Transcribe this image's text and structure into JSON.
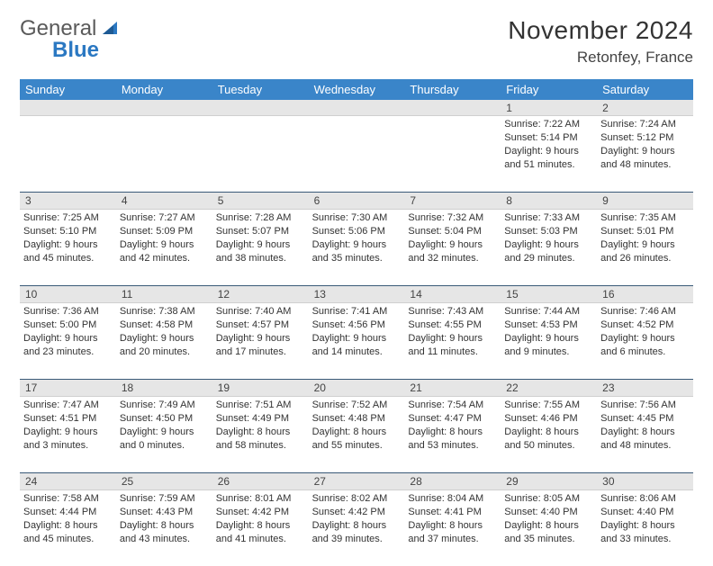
{
  "logo": {
    "text1": "General",
    "text2": "Blue"
  },
  "title": "November 2024",
  "subtitle": "Retonfey, France",
  "colors": {
    "header_bg": "#3a85c9",
    "header_text": "#ffffff",
    "daynum_bg": "#e6e6e6",
    "border": "#3a5a78",
    "body_text": "#333333",
    "logo_gray": "#5a5a5a",
    "logo_blue": "#2b78c2"
  },
  "fonts": {
    "title_size": 28,
    "subtitle_size": 17,
    "header_size": 13,
    "daynum_size": 12,
    "cell_size": 11
  },
  "weekdays": [
    "Sunday",
    "Monday",
    "Tuesday",
    "Wednesday",
    "Thursday",
    "Friday",
    "Saturday"
  ],
  "weeks": [
    {
      "nums": [
        "",
        "",
        "",
        "",
        "",
        "1",
        "2"
      ],
      "cells": [
        {
          "sunrise": "",
          "sunset": "",
          "daylight": ""
        },
        {
          "sunrise": "",
          "sunset": "",
          "daylight": ""
        },
        {
          "sunrise": "",
          "sunset": "",
          "daylight": ""
        },
        {
          "sunrise": "",
          "sunset": "",
          "daylight": ""
        },
        {
          "sunrise": "",
          "sunset": "",
          "daylight": ""
        },
        {
          "sunrise": "Sunrise: 7:22 AM",
          "sunset": "Sunset: 5:14 PM",
          "daylight": "Daylight: 9 hours and 51 minutes."
        },
        {
          "sunrise": "Sunrise: 7:24 AM",
          "sunset": "Sunset: 5:12 PM",
          "daylight": "Daylight: 9 hours and 48 minutes."
        }
      ]
    },
    {
      "nums": [
        "3",
        "4",
        "5",
        "6",
        "7",
        "8",
        "9"
      ],
      "cells": [
        {
          "sunrise": "Sunrise: 7:25 AM",
          "sunset": "Sunset: 5:10 PM",
          "daylight": "Daylight: 9 hours and 45 minutes."
        },
        {
          "sunrise": "Sunrise: 7:27 AM",
          "sunset": "Sunset: 5:09 PM",
          "daylight": "Daylight: 9 hours and 42 minutes."
        },
        {
          "sunrise": "Sunrise: 7:28 AM",
          "sunset": "Sunset: 5:07 PM",
          "daylight": "Daylight: 9 hours and 38 minutes."
        },
        {
          "sunrise": "Sunrise: 7:30 AM",
          "sunset": "Sunset: 5:06 PM",
          "daylight": "Daylight: 9 hours and 35 minutes."
        },
        {
          "sunrise": "Sunrise: 7:32 AM",
          "sunset": "Sunset: 5:04 PM",
          "daylight": "Daylight: 9 hours and 32 minutes."
        },
        {
          "sunrise": "Sunrise: 7:33 AM",
          "sunset": "Sunset: 5:03 PM",
          "daylight": "Daylight: 9 hours and 29 minutes."
        },
        {
          "sunrise": "Sunrise: 7:35 AM",
          "sunset": "Sunset: 5:01 PM",
          "daylight": "Daylight: 9 hours and 26 minutes."
        }
      ]
    },
    {
      "nums": [
        "10",
        "11",
        "12",
        "13",
        "14",
        "15",
        "16"
      ],
      "cells": [
        {
          "sunrise": "Sunrise: 7:36 AM",
          "sunset": "Sunset: 5:00 PM",
          "daylight": "Daylight: 9 hours and 23 minutes."
        },
        {
          "sunrise": "Sunrise: 7:38 AM",
          "sunset": "Sunset: 4:58 PM",
          "daylight": "Daylight: 9 hours and 20 minutes."
        },
        {
          "sunrise": "Sunrise: 7:40 AM",
          "sunset": "Sunset: 4:57 PM",
          "daylight": "Daylight: 9 hours and 17 minutes."
        },
        {
          "sunrise": "Sunrise: 7:41 AM",
          "sunset": "Sunset: 4:56 PM",
          "daylight": "Daylight: 9 hours and 14 minutes."
        },
        {
          "sunrise": "Sunrise: 7:43 AM",
          "sunset": "Sunset: 4:55 PM",
          "daylight": "Daylight: 9 hours and 11 minutes."
        },
        {
          "sunrise": "Sunrise: 7:44 AM",
          "sunset": "Sunset: 4:53 PM",
          "daylight": "Daylight: 9 hours and 9 minutes."
        },
        {
          "sunrise": "Sunrise: 7:46 AM",
          "sunset": "Sunset: 4:52 PM",
          "daylight": "Daylight: 9 hours and 6 minutes."
        }
      ]
    },
    {
      "nums": [
        "17",
        "18",
        "19",
        "20",
        "21",
        "22",
        "23"
      ],
      "cells": [
        {
          "sunrise": "Sunrise: 7:47 AM",
          "sunset": "Sunset: 4:51 PM",
          "daylight": "Daylight: 9 hours and 3 minutes."
        },
        {
          "sunrise": "Sunrise: 7:49 AM",
          "sunset": "Sunset: 4:50 PM",
          "daylight": "Daylight: 9 hours and 0 minutes."
        },
        {
          "sunrise": "Sunrise: 7:51 AM",
          "sunset": "Sunset: 4:49 PM",
          "daylight": "Daylight: 8 hours and 58 minutes."
        },
        {
          "sunrise": "Sunrise: 7:52 AM",
          "sunset": "Sunset: 4:48 PM",
          "daylight": "Daylight: 8 hours and 55 minutes."
        },
        {
          "sunrise": "Sunrise: 7:54 AM",
          "sunset": "Sunset: 4:47 PM",
          "daylight": "Daylight: 8 hours and 53 minutes."
        },
        {
          "sunrise": "Sunrise: 7:55 AM",
          "sunset": "Sunset: 4:46 PM",
          "daylight": "Daylight: 8 hours and 50 minutes."
        },
        {
          "sunrise": "Sunrise: 7:56 AM",
          "sunset": "Sunset: 4:45 PM",
          "daylight": "Daylight: 8 hours and 48 minutes."
        }
      ]
    },
    {
      "nums": [
        "24",
        "25",
        "26",
        "27",
        "28",
        "29",
        "30"
      ],
      "cells": [
        {
          "sunrise": "Sunrise: 7:58 AM",
          "sunset": "Sunset: 4:44 PM",
          "daylight": "Daylight: 8 hours and 45 minutes."
        },
        {
          "sunrise": "Sunrise: 7:59 AM",
          "sunset": "Sunset: 4:43 PM",
          "daylight": "Daylight: 8 hours and 43 minutes."
        },
        {
          "sunrise": "Sunrise: 8:01 AM",
          "sunset": "Sunset: 4:42 PM",
          "daylight": "Daylight: 8 hours and 41 minutes."
        },
        {
          "sunrise": "Sunrise: 8:02 AM",
          "sunset": "Sunset: 4:42 PM",
          "daylight": "Daylight: 8 hours and 39 minutes."
        },
        {
          "sunrise": "Sunrise: 8:04 AM",
          "sunset": "Sunset: 4:41 PM",
          "daylight": "Daylight: 8 hours and 37 minutes."
        },
        {
          "sunrise": "Sunrise: 8:05 AM",
          "sunset": "Sunset: 4:40 PM",
          "daylight": "Daylight: 8 hours and 35 minutes."
        },
        {
          "sunrise": "Sunrise: 8:06 AM",
          "sunset": "Sunset: 4:40 PM",
          "daylight": "Daylight: 8 hours and 33 minutes."
        }
      ]
    }
  ]
}
